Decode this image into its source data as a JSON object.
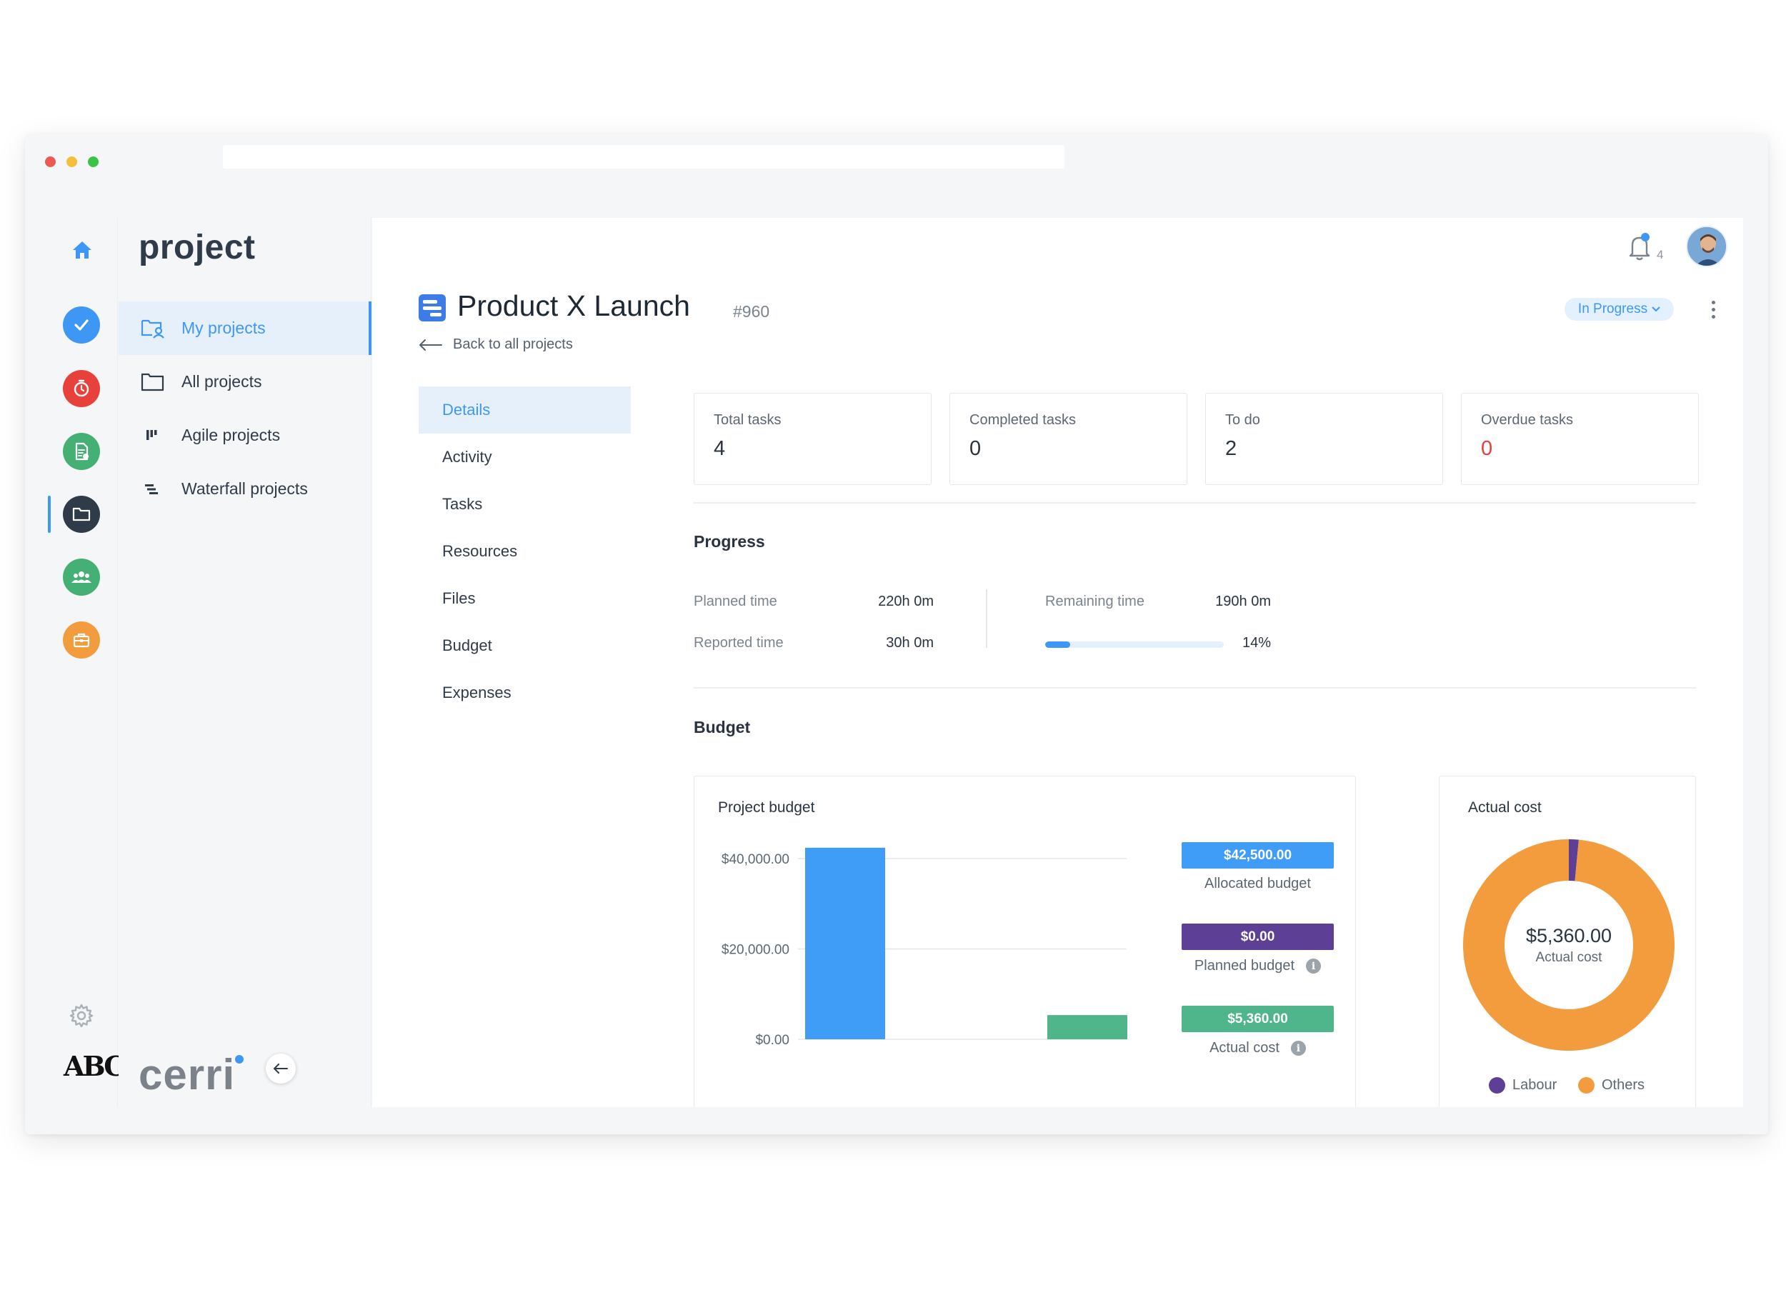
{
  "sidebar_rail": {
    "items": [
      {
        "name": "home-icon",
        "color": "#3f97f5"
      },
      {
        "name": "check-icon",
        "color": "#3f97f5"
      },
      {
        "name": "timer-icon",
        "color": "#e8413c"
      },
      {
        "name": "document-icon",
        "color": "#44b074"
      },
      {
        "name": "folder-icon",
        "color": "#2f3b48"
      },
      {
        "name": "team-icon",
        "color": "#44b074"
      },
      {
        "name": "briefcase-icon",
        "color": "#f39c3e"
      }
    ],
    "active": "folder-icon"
  },
  "nav": {
    "title": "project",
    "items": [
      {
        "label": "My projects",
        "icon": "user-folder-icon"
      },
      {
        "label": "All projects",
        "icon": "folder-outline-icon"
      },
      {
        "label": "Agile projects",
        "icon": "kanban-icon"
      },
      {
        "label": "Waterfall projects",
        "icon": "gantt-icon"
      }
    ],
    "brand": "cerri",
    "logo": "ABC"
  },
  "header": {
    "notification_count": "4",
    "avatar": "user-avatar"
  },
  "project": {
    "title": "Product X Launch",
    "id": "#960",
    "back_label": "Back to all projects",
    "status": "In Progress"
  },
  "subnav": {
    "items": [
      "Details",
      "Activity",
      "Tasks",
      "Resources",
      "Files",
      "Budget",
      "Expenses"
    ],
    "active": "Details"
  },
  "stats": [
    {
      "label": "Total tasks",
      "value": "4"
    },
    {
      "label": "Completed tasks",
      "value": "0"
    },
    {
      "label": "To do",
      "value": "2"
    },
    {
      "label": "Overdue tasks",
      "value": "0"
    }
  ],
  "progress": {
    "title": "Progress",
    "planned_label": "Planned time",
    "planned_value": "220h 0m",
    "reported_label": "Reported time",
    "reported_value": "30h 0m",
    "remaining_label": "Remaining time",
    "remaining_value": "190h 0m",
    "percent_label": "14%",
    "percent": 14
  },
  "budget": {
    "title": "Budget",
    "project_budget_title": "Project budget",
    "actual_cost_title": "Actual cost",
    "legend": [
      {
        "amount": "$42,500.00",
        "label": "Allocated budget",
        "color": "#3f9cf7",
        "info": false
      },
      {
        "amount": "$0.00",
        "label": "Planned budget",
        "color": "#5d3f96",
        "info": true
      },
      {
        "amount": "$5,360.00",
        "label": "Actual cost",
        "color": "#4fb58a",
        "info": true
      }
    ],
    "donut_amount": "$5,360.00",
    "donut_label": "Actual cost",
    "donut_legend": [
      {
        "label": "Labour",
        "color": "#5d3f96"
      },
      {
        "label": "Others",
        "color": "#f39c3e"
      }
    ]
  },
  "chart_data": [
    {
      "type": "bar",
      "categories": [
        "Allocated budget",
        "Planned budget",
        "Actual cost"
      ],
      "values": [
        42500,
        0,
        5360
      ],
      "colors": [
        "#3f9cf7",
        "#5d3f96",
        "#4fb58a"
      ],
      "yticks": [
        "$0.00",
        "$20,000.00",
        "$40,000.00"
      ],
      "ytick_values": [
        0,
        20000,
        40000
      ],
      "ylim": [
        0,
        40000
      ],
      "grid": true
    },
    {
      "type": "pie",
      "categories": [
        "Labour",
        "Others"
      ],
      "values": [
        1.5,
        98.5
      ],
      "colors": [
        "#5d3f96",
        "#f39c3e"
      ],
      "donut": true
    }
  ]
}
